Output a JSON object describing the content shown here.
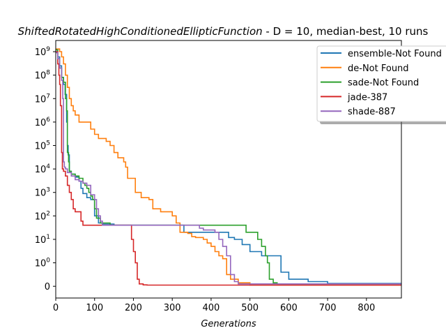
{
  "chart_data": {
    "type": "line",
    "title_italic": "ShiftedRotatedHighConditionedEllipticFunction",
    "title_rest": "  - D = 10, median-best, 10 runs",
    "xlabel": "Generations",
    "ylabel": "",
    "y_scale": "symlog",
    "xlim": [
      0,
      890
    ],
    "ylim": [
      -0.5,
      3000000000
    ],
    "x_ticks": [
      0,
      100,
      200,
      300,
      400,
      500,
      600,
      700,
      800
    ],
    "y_ticks": [
      {
        "value": 0,
        "label": "0"
      },
      {
        "value": 1,
        "label": "10^0"
      },
      {
        "value": 10,
        "label": "10^1"
      },
      {
        "value": 100,
        "label": "10^2"
      },
      {
        "value": 1000,
        "label": "10^3"
      },
      {
        "value": 10000,
        "label": "10^4"
      },
      {
        "value": 100000,
        "label": "10^5"
      },
      {
        "value": 1000000,
        "label": "10^6"
      },
      {
        "value": 10000000,
        "label": "10^7"
      },
      {
        "value": 100000000,
        "label": "10^8"
      },
      {
        "value": 1000000000,
        "label": "10^9"
      }
    ],
    "grid": false,
    "legend_position": "top-right",
    "series": [
      {
        "name": "ensemble-Not Found",
        "color": "#1f77b4",
        "points": [
          [
            0,
            1200000000
          ],
          [
            5,
            600000000
          ],
          [
            10,
            250000000
          ],
          [
            15,
            80000000
          ],
          [
            20,
            40000000
          ],
          [
            24,
            15000000
          ],
          [
            28,
            1000000
          ],
          [
            30,
            100000
          ],
          [
            32,
            40000
          ],
          [
            35,
            8000
          ],
          [
            40,
            6000
          ],
          [
            50,
            4500
          ],
          [
            60,
            3000
          ],
          [
            65,
            1500
          ],
          [
            70,
            900
          ],
          [
            80,
            600
          ],
          [
            90,
            500
          ],
          [
            100,
            100
          ],
          [
            110,
            50
          ],
          [
            120,
            45
          ],
          [
            150,
            40
          ],
          [
            300,
            40
          ],
          [
            330,
            20
          ],
          [
            440,
            20
          ],
          [
            445,
            12
          ],
          [
            460,
            10
          ],
          [
            480,
            6
          ],
          [
            500,
            3
          ],
          [
            530,
            2
          ],
          [
            580,
            0.6
          ],
          [
            600,
            0.3
          ],
          [
            650,
            0.2
          ],
          [
            700,
            0.12
          ],
          [
            890,
            0.05
          ]
        ]
      },
      {
        "name": "de-Not Found",
        "color": "#ff7f0e",
        "points": [
          [
            0,
            1300000000
          ],
          [
            10,
            1000000000
          ],
          [
            15,
            600000000
          ],
          [
            20,
            300000000
          ],
          [
            25,
            100000000
          ],
          [
            30,
            30000000
          ],
          [
            35,
            10000000
          ],
          [
            40,
            5000000
          ],
          [
            45,
            3000000
          ],
          [
            50,
            2000000
          ],
          [
            60,
            1000000
          ],
          [
            80,
            1000000
          ],
          [
            90,
            500000
          ],
          [
            100,
            300000
          ],
          [
            110,
            200000
          ],
          [
            130,
            150000
          ],
          [
            140,
            100000
          ],
          [
            150,
            50000
          ],
          [
            160,
            30000
          ],
          [
            175,
            20000
          ],
          [
            180,
            12000
          ],
          [
            185,
            4000
          ],
          [
            200,
            4000
          ],
          [
            205,
            1000
          ],
          [
            215,
            1000
          ],
          [
            220,
            600
          ],
          [
            240,
            500
          ],
          [
            250,
            200
          ],
          [
            270,
            150
          ],
          [
            300,
            100
          ],
          [
            310,
            50
          ],
          [
            320,
            20
          ],
          [
            340,
            18
          ],
          [
            350,
            13
          ],
          [
            360,
            12
          ],
          [
            380,
            10
          ],
          [
            390,
            7
          ],
          [
            400,
            5
          ],
          [
            410,
            3
          ],
          [
            420,
            2
          ],
          [
            430,
            1.5
          ],
          [
            440,
            0.5
          ],
          [
            450,
            0.3
          ],
          [
            470,
            0.15
          ],
          [
            500,
            0.05
          ],
          [
            890,
            0.05
          ]
        ]
      },
      {
        "name": "sade-Not Found",
        "color": "#2ca02c",
        "points": [
          [
            0,
            1200000000
          ],
          [
            5,
            500000000
          ],
          [
            10,
            200000000
          ],
          [
            15,
            80000000
          ],
          [
            20,
            50000000
          ],
          [
            25,
            10000000
          ],
          [
            28,
            3000000
          ],
          [
            30,
            50000
          ],
          [
            33,
            20000
          ],
          [
            35,
            8000
          ],
          [
            40,
            6000
          ],
          [
            50,
            5000
          ],
          [
            60,
            4000
          ],
          [
            70,
            2500
          ],
          [
            75,
            2000
          ],
          [
            80,
            1500
          ],
          [
            85,
            1000
          ],
          [
            90,
            700
          ],
          [
            95,
            500
          ],
          [
            100,
            200
          ],
          [
            105,
            80
          ],
          [
            115,
            50
          ],
          [
            140,
            40
          ],
          [
            480,
            40
          ],
          [
            490,
            20
          ],
          [
            510,
            20
          ],
          [
            520,
            10
          ],
          [
            530,
            5
          ],
          [
            540,
            2
          ],
          [
            545,
            1
          ],
          [
            550,
            0.3
          ],
          [
            560,
            0.15
          ],
          [
            570,
            0.1
          ],
          [
            890,
            0.05
          ]
        ]
      },
      {
        "name": "jade-387",
        "color": "#d62728",
        "points": [
          [
            0,
            1000000000
          ],
          [
            5,
            300000000
          ],
          [
            8,
            100000000
          ],
          [
            10,
            40000000
          ],
          [
            12,
            5000000
          ],
          [
            15,
            50000
          ],
          [
            17,
            10000
          ],
          [
            20,
            8000
          ],
          [
            25,
            5000
          ],
          [
            30,
            2000
          ],
          [
            35,
            1000
          ],
          [
            40,
            500
          ],
          [
            45,
            200
          ],
          [
            50,
            150
          ],
          [
            60,
            150
          ],
          [
            65,
            60
          ],
          [
            70,
            40
          ],
          [
            190,
            40
          ],
          [
            195,
            10
          ],
          [
            200,
            3
          ],
          [
            205,
            1
          ],
          [
            210,
            0.3
          ],
          [
            215,
            0.1
          ],
          [
            225,
            0.06
          ],
          [
            235,
            0.05
          ],
          [
            890,
            0.05
          ]
        ]
      },
      {
        "name": "shade-887",
        "color": "#9467bd",
        "points": [
          [
            0,
            900000000
          ],
          [
            5,
            500000000
          ],
          [
            10,
            200000000
          ],
          [
            15,
            60000000
          ],
          [
            18,
            10000000
          ],
          [
            20,
            20000
          ],
          [
            22,
            12000
          ],
          [
            25,
            10000
          ],
          [
            30,
            7000
          ],
          [
            40,
            5000
          ],
          [
            50,
            3500
          ],
          [
            60,
            3000
          ],
          [
            70,
            2500
          ],
          [
            80,
            2000
          ],
          [
            90,
            800
          ],
          [
            100,
            500
          ],
          [
            105,
            200
          ],
          [
            110,
            100
          ],
          [
            115,
            60
          ],
          [
            120,
            40
          ],
          [
            365,
            40
          ],
          [
            370,
            30
          ],
          [
            380,
            25
          ],
          [
            400,
            25
          ],
          [
            410,
            20
          ],
          [
            420,
            10
          ],
          [
            430,
            5
          ],
          [
            440,
            2
          ],
          [
            450,
            0.5
          ],
          [
            460,
            0.2
          ],
          [
            470,
            0.1
          ],
          [
            890,
            0.05
          ]
        ]
      }
    ]
  }
}
